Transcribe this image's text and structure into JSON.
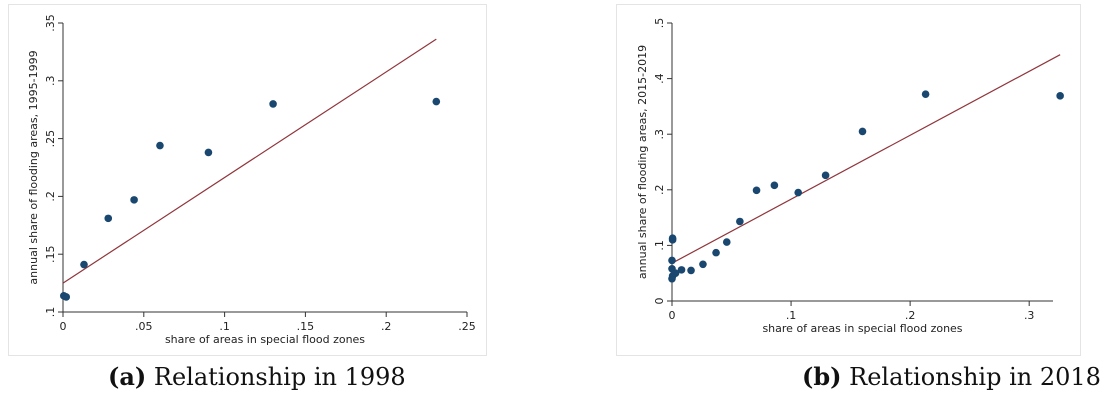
{
  "chart_data": [
    {
      "type": "scatter",
      "caption_tag": "(a)",
      "caption_text": "Relationship in 1998",
      "xlabel": "share of areas in special flood zones",
      "ylabel": "annual share of flooding areas, 1995-1999",
      "xlim": [
        0,
        0.25
      ],
      "ylim": [
        0.1,
        0.35
      ],
      "xticks": [
        0,
        0.05,
        0.1,
        0.15,
        0.2,
        0.25
      ],
      "xtick_labels": [
        "0",
        ".05",
        ".1",
        ".15",
        ".2",
        ".25"
      ],
      "yticks": [
        0.1,
        0.15,
        0.2,
        0.25,
        0.3,
        0.35
      ],
      "ytick_labels": [
        ".1",
        ".15",
        ".2",
        ".25",
        ".3",
        ".35"
      ],
      "grid": false,
      "points": [
        {
          "x": 0.0005,
          "y": 0.114
        },
        {
          "x": 0.002,
          "y": 0.113
        },
        {
          "x": 0.013,
          "y": 0.141
        },
        {
          "x": 0.028,
          "y": 0.181
        },
        {
          "x": 0.044,
          "y": 0.197
        },
        {
          "x": 0.06,
          "y": 0.244
        },
        {
          "x": 0.09,
          "y": 0.238
        },
        {
          "x": 0.13,
          "y": 0.28
        },
        {
          "x": 0.231,
          "y": 0.282
        }
      ],
      "fit_line": {
        "x": [
          0,
          0.231
        ],
        "y": [
          0.125,
          0.336
        ]
      },
      "colors": {
        "marker": "#1a476f",
        "line": "#90353b"
      }
    },
    {
      "type": "scatter",
      "caption_tag": "(b)",
      "caption_text": "Relationship in 2018",
      "xlabel": "share of areas in special flood zones",
      "ylabel": "annual share of flooding areas, 2015-2019",
      "xlim": [
        0,
        0.32
      ],
      "ylim": [
        0,
        0.5
      ],
      "xticks": [
        0,
        0.1,
        0.2,
        0.3
      ],
      "xtick_labels": [
        "0",
        ".1",
        ".2",
        ".3"
      ],
      "yticks": [
        0,
        0.1,
        0.2,
        0.3,
        0.4,
        0.5
      ],
      "ytick_labels": [
        "0",
        ".1",
        ".2",
        ".3",
        ".4",
        ".5"
      ],
      "grid": false,
      "points": [
        {
          "x": 0.0,
          "y": 0.04
        },
        {
          "x": 0.0005,
          "y": 0.045
        },
        {
          "x": 0.0,
          "y": 0.058
        },
        {
          "x": 0.0,
          "y": 0.073
        },
        {
          "x": 0.0005,
          "y": 0.11
        },
        {
          "x": 0.0005,
          "y": 0.113
        },
        {
          "x": 0.003,
          "y": 0.05
        },
        {
          "x": 0.008,
          "y": 0.056
        },
        {
          "x": 0.016,
          "y": 0.055
        },
        {
          "x": 0.026,
          "y": 0.066
        },
        {
          "x": 0.037,
          "y": 0.087
        },
        {
          "x": 0.046,
          "y": 0.106
        },
        {
          "x": 0.057,
          "y": 0.143
        },
        {
          "x": 0.071,
          "y": 0.199
        },
        {
          "x": 0.086,
          "y": 0.208
        },
        {
          "x": 0.106,
          "y": 0.195
        },
        {
          "x": 0.129,
          "y": 0.226
        },
        {
          "x": 0.16,
          "y": 0.305
        },
        {
          "x": 0.213,
          "y": 0.372
        },
        {
          "x": 0.326,
          "y": 0.369
        }
      ],
      "fit_line": {
        "x": [
          0,
          0.326
        ],
        "y": [
          0.068,
          0.443
        ]
      },
      "colors": {
        "marker": "#1a476f",
        "line": "#90353b"
      }
    }
  ]
}
